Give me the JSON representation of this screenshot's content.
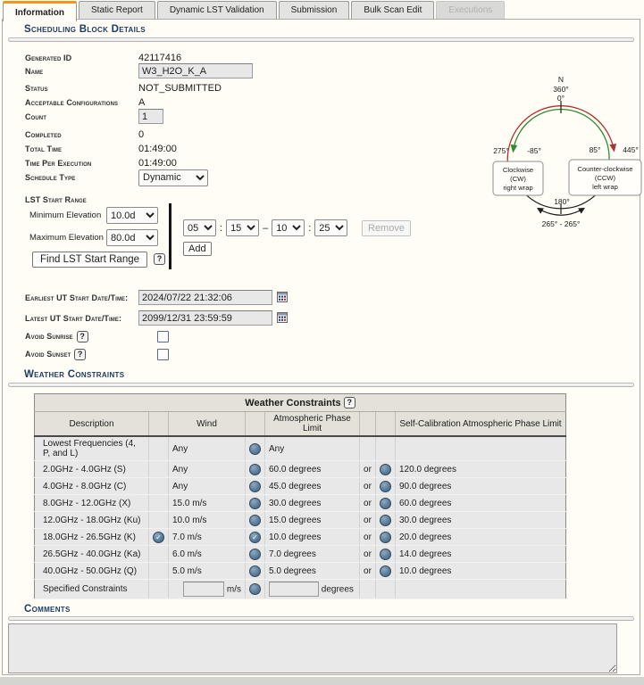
{
  "tabs": [
    {
      "label": "Information"
    },
    {
      "label": "Static Report"
    },
    {
      "label": "Dynamic LST Validation"
    },
    {
      "label": "Submission"
    },
    {
      "label": "Bulk Scan Edit"
    },
    {
      "label": "Executions"
    }
  ],
  "details": {
    "heading": "Scheduling Block Details",
    "generated_id": {
      "label": "Generated ID",
      "value": "42117416"
    },
    "name": {
      "label": "Name",
      "value": "W3_H2O_K_A"
    },
    "status": {
      "label": "Status",
      "value": "NOT_SUBMITTED"
    },
    "acceptable_configurations": {
      "label": "Acceptable Configurations",
      "value": "A"
    },
    "count": {
      "label": "Count",
      "value": "1"
    },
    "completed": {
      "label": "Completed",
      "value": "0"
    },
    "total_time": {
      "label": "Total Time",
      "value": "01:49:00"
    },
    "time_per_execution": {
      "label": "Time Per Execution",
      "value": "01:49:00"
    },
    "schedule_type": {
      "label": "Schedule Type",
      "value": "Dynamic"
    }
  },
  "lst": {
    "heading": "LST Start Range",
    "min_elevation": {
      "label": "Minimum Elevation",
      "value": "10.0d"
    },
    "max_elevation": {
      "label": "Maximum Elevation",
      "value": "80.0d"
    },
    "find_button": "Find LST Start Range",
    "help": "?",
    "range": {
      "start_h": "05",
      "start_m": "15",
      "end_h": "10",
      "end_m": "25",
      "colon": ":",
      "dash": "–"
    },
    "remove_button": "Remove",
    "add_button": "Add"
  },
  "dates": {
    "earliest": {
      "label": "Earliest UT Start Date/Time:",
      "value": "2024/07/22 21:32:06"
    },
    "latest": {
      "label": "Latest UT Start Date/Time:",
      "value": "2099/12/31 23:59:59"
    }
  },
  "avoid": {
    "sunrise_label": "Avoid Sunrise",
    "sunset_label": "Avoid Sunset",
    "help": "?"
  },
  "compass": {
    "north": "N",
    "deg360": "360°",
    "deg0": "0°",
    "left_outer": "275°",
    "left_inner": "-85°",
    "right_inner": "85°",
    "right_outer": "445°",
    "cw_box": [
      "Clockwise",
      "(CW)",
      "right wrap"
    ],
    "ccw_box": [
      "Counter-clockwise",
      "(CCW)",
      "left wrap"
    ],
    "bottom_deg": "180°",
    "bottom_range": "265° - 265°",
    "cw_color": "#b23030",
    "ccw_color": "#2e8b2e"
  },
  "weather": {
    "heading": "Weather Constraints",
    "table_title": "Weather Constraints",
    "help": "?",
    "columns": {
      "description": "Description",
      "wind": "Wind",
      "atm": "Atmospheric Phase Limit",
      "selfcal": "Self-Calibration Atmospheric Phase Limit"
    },
    "rows": [
      {
        "desc": "Lowest Frequencies (4, P, and L)",
        "selected": false,
        "wind": "Any",
        "atm_checked": false,
        "atm": "Any",
        "or": "",
        "selfcal": ""
      },
      {
        "desc": "2.0GHz - 4.0GHz (S)",
        "selected": false,
        "wind": "Any",
        "atm_checked": false,
        "atm": "60.0 degrees",
        "or": "or",
        "selfcal": "120.0 degrees"
      },
      {
        "desc": "4.0GHz - 8.0GHz (C)",
        "selected": false,
        "wind": "Any",
        "atm_checked": false,
        "atm": "45.0 degrees",
        "or": "or",
        "selfcal": "90.0 degrees"
      },
      {
        "desc": "8.0GHz - 12.0GHz (X)",
        "selected": false,
        "wind": "15.0 m/s",
        "atm_checked": false,
        "atm": "30.0 degrees",
        "or": "or",
        "selfcal": "60.0 degrees"
      },
      {
        "desc": "12.0GHz - 18.0GHz (Ku)",
        "selected": false,
        "wind": "10.0 m/s",
        "atm_checked": false,
        "atm": "15.0 degrees",
        "or": "or",
        "selfcal": "30.0 degrees"
      },
      {
        "desc": "18.0GHz - 26.5GHz (K)",
        "selected": true,
        "wind": "7.0 m/s",
        "atm_checked": true,
        "atm": "10.0 degrees",
        "or": "or",
        "selfcal": "20.0 degrees"
      },
      {
        "desc": "26.5GHz - 40.0GHz (Ka)",
        "selected": false,
        "wind": "6.0 m/s",
        "atm_checked": false,
        "atm": "7.0 degrees",
        "or": "or",
        "selfcal": "14.0 degrees"
      },
      {
        "desc": "40.0GHz - 50.0GHz (Q)",
        "selected": false,
        "wind": "5.0 m/s",
        "atm_checked": false,
        "atm": "5.0 degrees",
        "or": "or",
        "selfcal": "10.0 degrees"
      }
    ],
    "specified": {
      "desc": "Specified Constraints",
      "wind_value": "",
      "wind_unit": "m/s",
      "atm_value": "",
      "atm_unit": "degrees"
    }
  },
  "comments": {
    "heading": "Comments"
  }
}
